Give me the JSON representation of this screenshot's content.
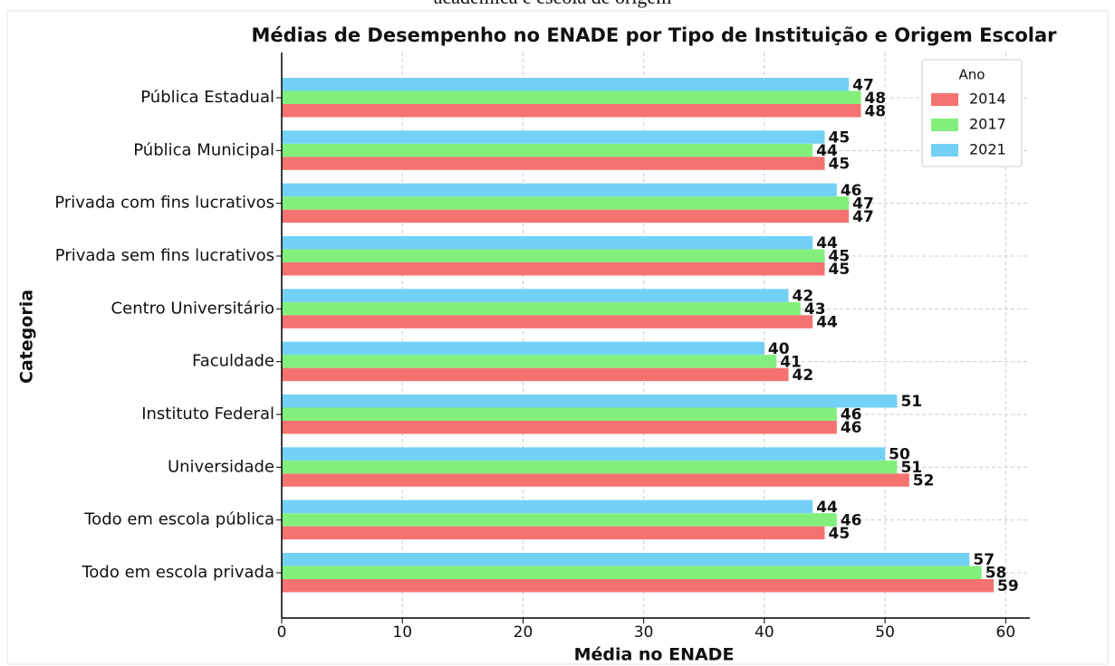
{
  "caption": "acadêmica e escola de origem",
  "chart_data": {
    "type": "barh",
    "title": "Médias de Desempenho no ENADE por Tipo de Instituição e Origem Escolar",
    "xlabel": "Média no ENADE",
    "ylabel": "Categoria",
    "categories": [
      "Pública Estadual",
      "Pública Municipal",
      "Privada com fins lucrativos",
      "Privada sem fins lucrativos",
      "Centro Universitário",
      "Faculdade",
      "Instituto Federal",
      "Universidade",
      "Todo em escola pública",
      "Todo em escola privada"
    ],
    "series": [
      {
        "name": "2014",
        "color": "#f47371",
        "values": [
          48,
          45,
          47,
          45,
          44,
          42,
          46,
          52,
          45,
          59
        ]
      },
      {
        "name": "2017",
        "color": "#82ef7d",
        "values": [
          48,
          44,
          47,
          45,
          43,
          41,
          46,
          51,
          46,
          58
        ]
      },
      {
        "name": "2021",
        "color": "#74d1f6",
        "values": [
          47,
          45,
          46,
          44,
          42,
          40,
          51,
          50,
          44,
          57
        ]
      }
    ],
    "legend_title": "Ano",
    "legend": "upper right",
    "xlim": [
      0,
      62
    ],
    "xticks": [
      0,
      10,
      20,
      30,
      40,
      50,
      60
    ],
    "grid": true
  }
}
